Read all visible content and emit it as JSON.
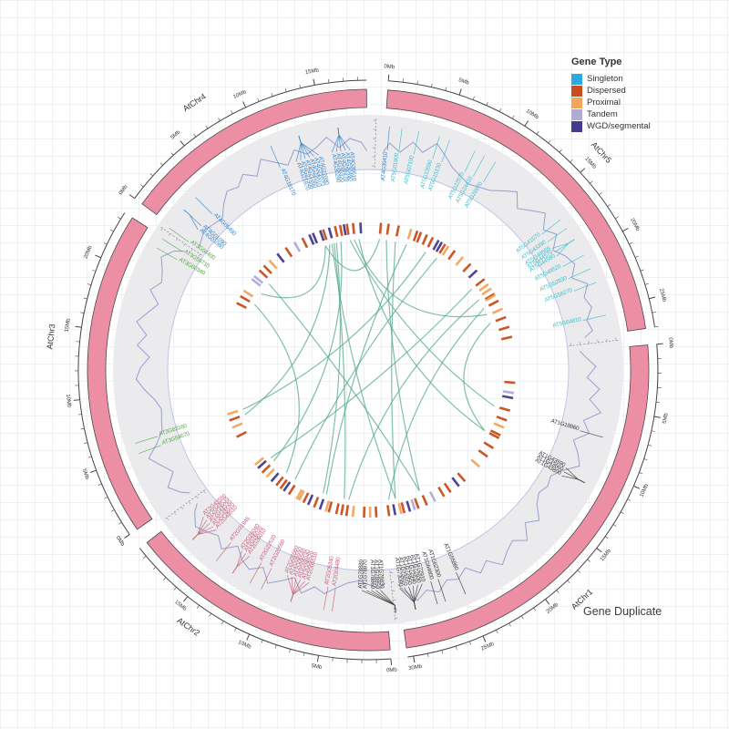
{
  "caption": "Gene Duplicate",
  "legend": {
    "title": "Gene Type",
    "items": [
      {
        "label": "Singleton",
        "color": "#29abe2"
      },
      {
        "label": "Dispersed",
        "color": "#c94e1b"
      },
      {
        "label": "Proximal",
        "color": "#f3a55c"
      },
      {
        "label": "Tandem",
        "color": "#afaad6"
      },
      {
        "label": "WGD/segmental",
        "color": "#443a8f"
      }
    ]
  },
  "chart_data": {
    "type": "circos",
    "axis_unit": "Mb",
    "deg_per_mb": 2.87,
    "ring_fill": "#ed8fa4",
    "ring_stroke": "#4a4a4a",
    "band_fill": "#ebebed",
    "band_edge": "#b9c1e6",
    "density_color": "#8f97cf",
    "chord_color": "#57a98f",
    "gene_type_colors": {
      "Singleton": "#29abe2",
      "Dispersed": "#c94e1b",
      "Proximal": "#f3a55c",
      "Tandem": "#afaad6",
      "WGD/segmental": "#443a8f"
    },
    "chromosomes": [
      {
        "name": "AtChr5",
        "size_mb": 27.0,
        "start_deg": 4.0,
        "name_deg": 47,
        "label_color": "#3fc0cd"
      },
      {
        "name": "AtChr1",
        "size_mb": 30.4,
        "start_deg": 84.9,
        "name_deg": 137,
        "label_color": "#3c3c3c"
      },
      {
        "name": "AtChr2",
        "size_mb": 19.7,
        "start_deg": 175.5,
        "name_deg": 215,
        "label_color": "#c9607e"
      },
      {
        "name": "AtChr3",
        "size_mb": 23.5,
        "start_deg": 235.4,
        "name_deg": 276,
        "label_color": "#56a84c"
      },
      {
        "name": "AtChr4",
        "size_mb": 18.6,
        "start_deg": 306.3,
        "name_deg": 327,
        "label_color": "#3d87c9"
      }
    ],
    "gene_density": {
      "AtChr1": [
        0.25,
        0.5,
        0.3,
        0.6,
        0.4,
        0.7,
        0.35,
        0.55,
        0.25,
        0.45,
        0.6,
        0.3,
        0.12,
        0.18,
        0.1,
        0.22,
        0.5,
        0.3,
        0.62,
        0.4,
        0.52,
        0.7,
        0.42,
        0.6,
        0.33,
        0.5,
        0.42,
        0.62,
        0.5,
        0.68,
        0.4
      ],
      "AtChr2": [
        0.3,
        0.2,
        0.12,
        0.18,
        0.32,
        0.5,
        0.4,
        0.62,
        0.33,
        0.5,
        0.68,
        0.4,
        0.6,
        0.5,
        0.3,
        0.58,
        0.4,
        0.52,
        0.62,
        0.42
      ],
      "AtChr3": [
        0.4,
        0.6,
        0.32,
        0.5,
        0.7,
        0.4,
        0.2,
        0.15,
        0.1,
        0.22,
        0.42,
        0.6,
        0.5,
        0.3,
        0.6,
        0.42,
        0.7,
        0.5,
        0.32,
        0.6,
        0.42,
        0.52,
        0.68,
        0.5
      ],
      "AtChr4": [
        0.12,
        0.22,
        0.15,
        0.1,
        0.32,
        0.5,
        0.42,
        0.6,
        0.4,
        0.7,
        0.5,
        0.32,
        0.6,
        0.42,
        0.52,
        0.7,
        0.42,
        0.6,
        0.5
      ],
      "AtChr5": [
        0.5,
        0.32,
        0.6,
        0.42,
        0.7,
        0.5,
        0.3,
        0.2,
        0.12,
        0.18,
        0.25,
        0.42,
        0.6,
        0.32,
        0.5,
        0.7,
        0.42,
        0.6,
        0.33,
        0.5,
        0.6,
        0.4,
        0.68,
        0.5,
        0.6,
        0.42,
        0.5
      ]
    },
    "genes": [
      {
        "id": "AT4G01080",
        "chr": "AtChr4",
        "a": 309.5,
        "anchor": 311,
        "t": "Tandem"
      },
      {
        "id": "AT4G01090",
        "chr": "AtChr4",
        "a": 310.8,
        "anchor": 311
      },
      {
        "id": "AT4G05490",
        "chr": "AtChr4",
        "a": 315,
        "t": "Dispersed"
      },
      {
        "id": "AT4G18170",
        "chr": "AtChr4",
        "a": 336.5,
        "t": "WGD/segmental"
      },
      {
        "id": "AT4G21870",
        "chr": "AtChr4",
        "a": 341,
        "anchor": 343.5,
        "t": "WGD/segmental"
      },
      {
        "id": "AT4G21900",
        "chr": "AtChr4",
        "a": 342.2,
        "anchor": 343.5,
        "t": "Dispersed"
      },
      {
        "id": "AT4G21960",
        "chr": "AtChr4",
        "a": 343.4,
        "anchor": 343.5
      },
      {
        "id": "AT4G22010",
        "chr": "AtChr4",
        "a": 344.6,
        "anchor": 343.5,
        "t": "WGD/segmental"
      },
      {
        "id": "AT4G22070",
        "chr": "AtChr4",
        "a": 345.8,
        "anchor": 343.5
      },
      {
        "id": "AT4G22080",
        "chr": "AtChr4",
        "a": 347,
        "anchor": 343.5,
        "t": "Dispersed"
      },
      {
        "id": "AT4G30290",
        "chr": "AtChr4",
        "a": 350.5,
        "anchor": 352.9,
        "t": "WGD/segmental"
      },
      {
        "id": "AT4G30320",
        "chr": "AtChr4",
        "a": 351.7,
        "anchor": 352.9,
        "t": "Dispersed"
      },
      {
        "id": "AT4G30470",
        "chr": "AtChr4",
        "a": 352.9,
        "anchor": 352.9
      },
      {
        "id": "AT4G30490",
        "chr": "AtChr4",
        "a": 354.1,
        "anchor": 352.9,
        "t": "Dispersed"
      },
      {
        "id": "AT4G30510",
        "chr": "AtChr4",
        "a": 355.3,
        "anchor": 352.9
      },
      {
        "id": "AT4G39410",
        "chr": "AtChr4",
        "a": 5,
        "t": "Dispersed"
      },
      {
        "id": "AT5G01900",
        "chr": "AtChr5",
        "a": 8,
        "t": "Dispersed"
      },
      {
        "id": "AT5G07100",
        "chr": "AtChr5",
        "a": 12,
        "t": "Dispersed"
      },
      {
        "id": "AT5G13590",
        "chr": "AtChr5",
        "a": 17,
        "t": "Proximal"
      },
      {
        "id": "AT5G15130",
        "chr": "AtChr5",
        "a": 19.5,
        "t": "Dispersed"
      },
      {
        "id": "AT5G22570",
        "chr": "AtChr5",
        "a": 26,
        "t": "Dispersed"
      },
      {
        "id": "AT5G24410",
        "chr": "AtChr5",
        "a": 28.5,
        "t": "WGD/segmental"
      },
      {
        "id": "AT5G26970",
        "chr": "AtChr5",
        "a": 31.5,
        "t": "Dispersed"
      },
      {
        "id": "AT5G41570",
        "chr": "AtChr5",
        "a": 52,
        "t": "Dispersed"
      },
      {
        "id": "AT5G43390",
        "chr": "AtChr5",
        "a": 54.5,
        "t": "Proximal"
      },
      {
        "id": "AT5G44568",
        "chr": "AtChr5",
        "a": 56.5,
        "anchor": 57.7,
        "t": "Proximal"
      },
      {
        "id": "AT5G44570",
        "chr": "AtChr5",
        "a": 57.7,
        "anchor": 57.7
      },
      {
        "id": "AT5G44580",
        "chr": "AtChr5",
        "a": 58.9,
        "anchor": 57.7,
        "t": "Dispersed"
      },
      {
        "id": "AT5G49520",
        "chr": "AtChr5",
        "a": 62,
        "t": "Dispersed"
      },
      {
        "id": "AT5G52830",
        "chr": "AtChr5",
        "a": 65.5,
        "t": "Proximal"
      },
      {
        "id": "AT5G58270",
        "chr": "AtChr5",
        "a": 69,
        "t": "Dispersed"
      },
      {
        "id": "AT5G64810",
        "chr": "AtChr5",
        "a": 77,
        "t": "Dispersed"
      },
      {
        "id": "AT1G18860",
        "chr": "AtChr1",
        "a": 106,
        "t": "Dispersed"
      },
      {
        "id": "AT1G43590",
        "chr": "AtChr1",
        "a": 116.3,
        "anchor": 117.5,
        "t": "Dispersed"
      },
      {
        "id": "AT1G43660",
        "chr": "AtChr1",
        "a": 117.5,
        "anchor": 117.5,
        "t": "Dispersed"
      },
      {
        "id": "AT1G43800",
        "chr": "AtChr1",
        "a": 118.7,
        "anchor": 117.5
      },
      {
        "id": "AT1G55860",
        "chr": "AtChr1",
        "a": 156.5,
        "t": "Dispersed"
      },
      {
        "id": "AT1G62300",
        "chr": "AtChr1",
        "a": 161.5,
        "t": "Tandem"
      },
      {
        "id": "AT1G64600",
        "chr": "AtChr1",
        "a": 163.5,
        "t": "WGD/segmental"
      },
      {
        "id": "AT1G72910",
        "chr": "AtChr1",
        "a": 165.8,
        "anchor": 168.8,
        "t": "Dispersed"
      },
      {
        "id": "AT1G72930",
        "chr": "AtChr1",
        "a": 167,
        "anchor": 168.8,
        "t": "Proximal"
      },
      {
        "id": "AT1G72940",
        "chr": "AtChr1",
        "a": 168.2,
        "anchor": 168.8
      },
      {
        "id": "AT1G72950",
        "chr": "AtChr1",
        "a": 169.4,
        "anchor": 168.8,
        "t": "WGD/segmental"
      },
      {
        "id": "AT1G73010",
        "chr": "AtChr1",
        "a": 170.6,
        "anchor": 168.8
      },
      {
        "id": "AT1G73080",
        "chr": "AtChr1",
        "a": 171.8,
        "anchor": 168.8,
        "t": "Dispersed"
      },
      {
        "id": "AT1G78830",
        "chr": "AtChr1",
        "a": 176.8,
        "anchor": 173.5,
        "t": "Dispersed"
      },
      {
        "id": "AT1G78850",
        "chr": "AtChr1",
        "a": 178,
        "anchor": 173.5
      },
      {
        "id": "AT1G78860",
        "chr": "AtChr1",
        "a": 179.2,
        "anchor": 173.5,
        "t": "Proximal"
      },
      {
        "id": "AT1G78870",
        "chr": "AtChr1",
        "a": 180.4,
        "anchor": 173.5
      },
      {
        "id": "AT1G78880",
        "chr": "AtChr1",
        "a": 181.6,
        "anchor": 173.5,
        "t": "Dispersed"
      },
      {
        "id": "AT2G04480",
        "chr": "AtChr2",
        "a": 188.5,
        "t": "Dispersed"
      },
      {
        "id": "AT2G05340",
        "chr": "AtChr2",
        "a": 190.5,
        "t": "Dispersed"
      },
      {
        "id": "AT2G05510",
        "chr": "AtChr2",
        "a": 195.5,
        "anchor": 198.5,
        "t": "Dispersed"
      },
      {
        "id": "AT2G05520",
        "chr": "AtChr2",
        "a": 196.7,
        "anchor": 198.5,
        "t": "Proximal"
      },
      {
        "id": "AT2G05530",
        "chr": "AtChr2",
        "a": 197.9,
        "anchor": 198.5
      },
      {
        "id": "AT2G05540",
        "chr": "AtChr2",
        "a": 199.1,
        "anchor": 198.5,
        "t": "WGD/segmental"
      },
      {
        "id": "AT2G05550",
        "chr": "AtChr2",
        "a": 200.3,
        "anchor": 198.5
      },
      {
        "id": "AT2G05560",
        "chr": "AtChr2",
        "a": 201.5,
        "anchor": 198.5,
        "t": "Dispersed"
      },
      {
        "id": "AT2G20560",
        "chr": "AtChr2",
        "a": 206,
        "t": "Dispersed"
      },
      {
        "id": "AT2G22510",
        "chr": "AtChr2",
        "a": 209,
        "t": "Proximal"
      },
      {
        "id": "AT2G26010",
        "chr": "AtChr2",
        "a": 212.5,
        "anchor": 213.7,
        "t": "Dispersed"
      },
      {
        "id": "AT2G26020",
        "chr": "AtChr2",
        "a": 213.7,
        "anchor": 213.7
      },
      {
        "id": "AT2G26040",
        "chr": "AtChr2",
        "a": 214.9,
        "anchor": 213.7,
        "t": "WGD/segmental"
      },
      {
        "id": "AT2G31945",
        "chr": "AtChr2",
        "a": 218.5,
        "t": "Dispersed"
      },
      {
        "id": "AT2G43510",
        "chr": "AtChr2",
        "a": 223.5,
        "anchor": 226,
        "t": "Proximal"
      },
      {
        "id": "AT2G43520",
        "chr": "AtChr2",
        "a": 224.7,
        "anchor": 226
      },
      {
        "id": "AT2G43530",
        "chr": "AtChr2",
        "a": 225.9,
        "anchor": 226,
        "t": "Dispersed"
      },
      {
        "id": "AT2G43535",
        "chr": "AtChr2",
        "a": 227.1,
        "anchor": 226
      },
      {
        "id": "AT2G43550",
        "chr": "AtChr2",
        "a": 228.3,
        "anchor": 226,
        "t": "WGD/segmental"
      },
      {
        "id": "AT3G54670",
        "chr": "AtChr3",
        "a": 250,
        "t": "Dispersed"
      },
      {
        "id": "AT3G63160",
        "chr": "AtChr3",
        "a": 252.5,
        "t": "Proximal"
      },
      {
        "id": "AT3G60340",
        "chr": "AtChr3",
        "a": 300,
        "t": "Dispersed"
      },
      {
        "id": "AT3G59710",
        "chr": "AtChr3",
        "a": 302.5,
        "t": "Proximal"
      },
      {
        "id": "AT3G04400",
        "chr": "AtChr3",
        "a": 305.5
      }
    ],
    "extra_marks": [
      {
        "a": 21,
        "t": "Dispersed"
      },
      {
        "a": 23.5,
        "t": "Dispersed"
      },
      {
        "a": 30,
        "t": "WGD/segmental"
      },
      {
        "a": 33,
        "t": "Proximal"
      },
      {
        "a": 36,
        "t": "Dispersed"
      },
      {
        "a": 40,
        "t": "Proximal"
      },
      {
        "a": 44,
        "t": "Dispersed"
      },
      {
        "a": 47.5,
        "t": "WGD/segmental"
      },
      {
        "a": 59.5,
        "t": "Proximal"
      },
      {
        "a": 73,
        "t": "Dispersed"
      },
      {
        "a": 95,
        "t": "Dispersed"
      },
      {
        "a": 99,
        "t": "Tandem"
      },
      {
        "a": 101,
        "t": "WGD/segmental"
      },
      {
        "a": 110,
        "t": "Dispersed"
      },
      {
        "a": 113,
        "t": "Proximal"
      },
      {
        "a": 122,
        "t": "Dispersed"
      },
      {
        "a": 126,
        "t": "Dispersed"
      },
      {
        "a": 131,
        "t": "Proximal"
      },
      {
        "a": 139,
        "t": "Dispersed"
      },
      {
        "a": 142,
        "t": "WGD/segmental"
      },
      {
        "a": 146,
        "t": "Dispersed"
      },
      {
        "a": 149,
        "t": "Dispersed"
      },
      {
        "a": 153,
        "t": "Tandem"
      },
      {
        "a": 160,
        "t": "Dispersed"
      },
      {
        "a": 186,
        "t": "Proximal"
      },
      {
        "a": 192.5,
        "t": "Dispersed"
      },
      {
        "a": 204,
        "t": "WGD/segmental"
      },
      {
        "a": 208,
        "t": "Proximal"
      },
      {
        "a": 216.5,
        "t": "Dispersed"
      },
      {
        "a": 221,
        "t": "WGD/segmental"
      },
      {
        "a": 230,
        "t": "Proximal"
      },
      {
        "a": 243,
        "t": "Dispersed"
      },
      {
        "a": 247,
        "t": "Proximal"
      },
      {
        "a": 297,
        "t": "Dispersed"
      },
      {
        "a": 308,
        "t": "Tandem"
      },
      {
        "a": 312.5,
        "t": "Dispersed"
      },
      {
        "a": 318,
        "t": "Proximal"
      },
      {
        "a": 322,
        "t": "WGD/segmental"
      },
      {
        "a": 326,
        "t": "Dispersed"
      },
      {
        "a": 330,
        "t": "Tandem"
      },
      {
        "a": 333.5,
        "t": "Dispersed"
      },
      {
        "a": 338,
        "t": "WGD/segmental"
      },
      {
        "a": 349,
        "t": "Dispersed"
      },
      {
        "a": 357,
        "t": "WGD/segmental"
      }
    ],
    "chords": [
      [
        344,
        168
      ],
      [
        346,
        200
      ],
      [
        348,
        226
      ],
      [
        352,
        106
      ],
      [
        354,
        65
      ],
      [
        343,
        250
      ],
      [
        356,
        117.5
      ],
      [
        341,
        305.5
      ],
      [
        345,
        190.5
      ],
      [
        12,
        168
      ],
      [
        17,
        198.5
      ],
      [
        26,
        252.5
      ],
      [
        31.5,
        213.7
      ],
      [
        52,
        228
      ],
      [
        57.7,
        188.5
      ],
      [
        62,
        171
      ],
      [
        69,
        117.5
      ],
      [
        8,
        157
      ],
      [
        300,
        218.5
      ],
      [
        311,
        157
      ],
      [
        5,
        341
      ]
    ]
  }
}
